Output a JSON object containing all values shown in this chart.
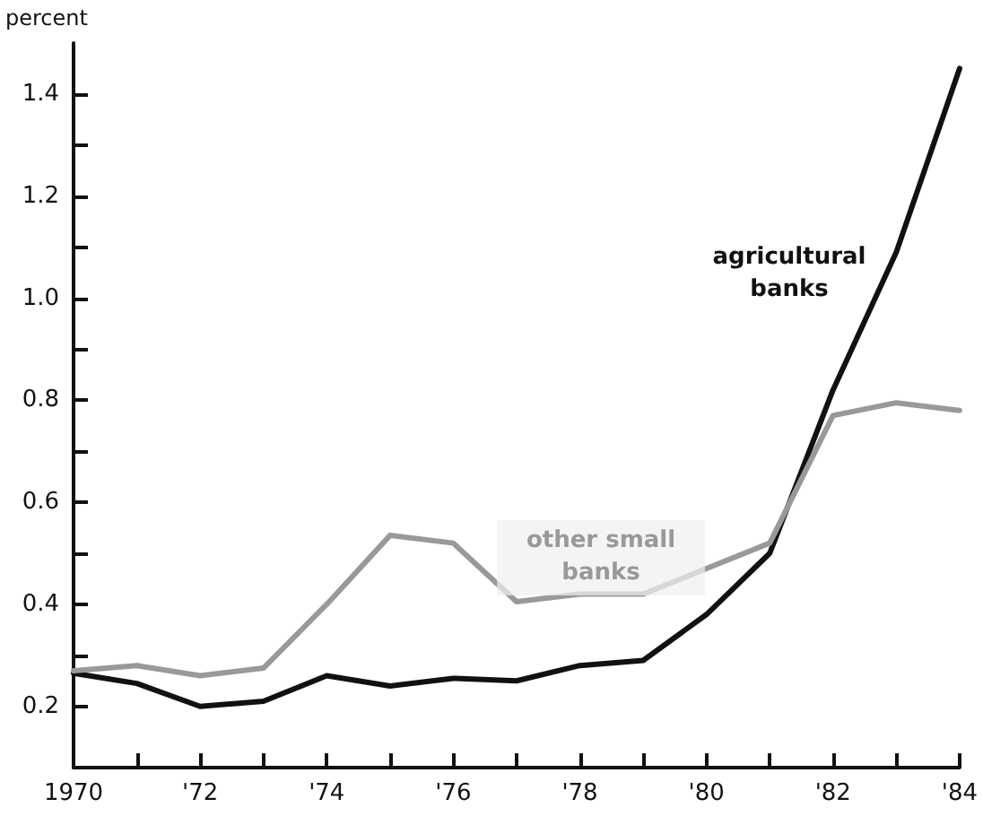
{
  "chart_data": {
    "type": "line",
    "ylabel": "percent",
    "x": [
      1970,
      1971,
      1972,
      1973,
      1974,
      1975,
      1976,
      1977,
      1978,
      1979,
      1980,
      1981,
      1982,
      1983,
      1984
    ],
    "series": [
      {
        "name": "agricultural banks",
        "color": "#111111",
        "values": [
          0.265,
          0.245,
          0.2,
          0.21,
          0.26,
          0.24,
          0.255,
          0.25,
          0.28,
          0.29,
          0.38,
          0.5,
          0.82,
          1.09,
          1.45
        ]
      },
      {
        "name": "other small banks",
        "color": "#999999",
        "values": [
          0.27,
          0.28,
          0.26,
          0.275,
          0.4,
          0.535,
          0.52,
          0.405,
          0.42,
          0.42,
          0.47,
          0.52,
          0.77,
          0.795,
          0.78
        ]
      }
    ],
    "xlim": [
      1970,
      1984
    ],
    "xticks": [
      {
        "value": 1970,
        "label": "1970"
      },
      {
        "value": 1971,
        "label": null
      },
      {
        "value": 1972,
        "label": "'72"
      },
      {
        "value": 1973,
        "label": null
      },
      {
        "value": 1974,
        "label": "'74"
      },
      {
        "value": 1975,
        "label": null
      },
      {
        "value": 1976,
        "label": "'76"
      },
      {
        "value": 1977,
        "label": null
      },
      {
        "value": 1978,
        "label": "'78"
      },
      {
        "value": 1979,
        "label": null
      },
      {
        "value": 1980,
        "label": "'80"
      },
      {
        "value": 1981,
        "label": null
      },
      {
        "value": 1982,
        "label": "'82"
      },
      {
        "value": 1983,
        "label": null
      },
      {
        "value": 1984,
        "label": "'84"
      }
    ],
    "ylim": [
      0.08,
      1.5
    ],
    "yticks": [
      0.2,
      {
        "value": 0.3,
        "label": null
      },
      0.4,
      {
        "value": 0.5,
        "label": null
      },
      0.6,
      {
        "value": 0.7,
        "label": null
      },
      0.8,
      {
        "value": 0.9,
        "label": null
      },
      {
        "value": 1.0,
        "label": "1.0"
      },
      {
        "value": 1.1,
        "label": null
      },
      1.2,
      {
        "value": 1.3,
        "label": null
      },
      1.4
    ],
    "grid": false,
    "legend": false,
    "marker": "none",
    "line_style": "solid"
  }
}
